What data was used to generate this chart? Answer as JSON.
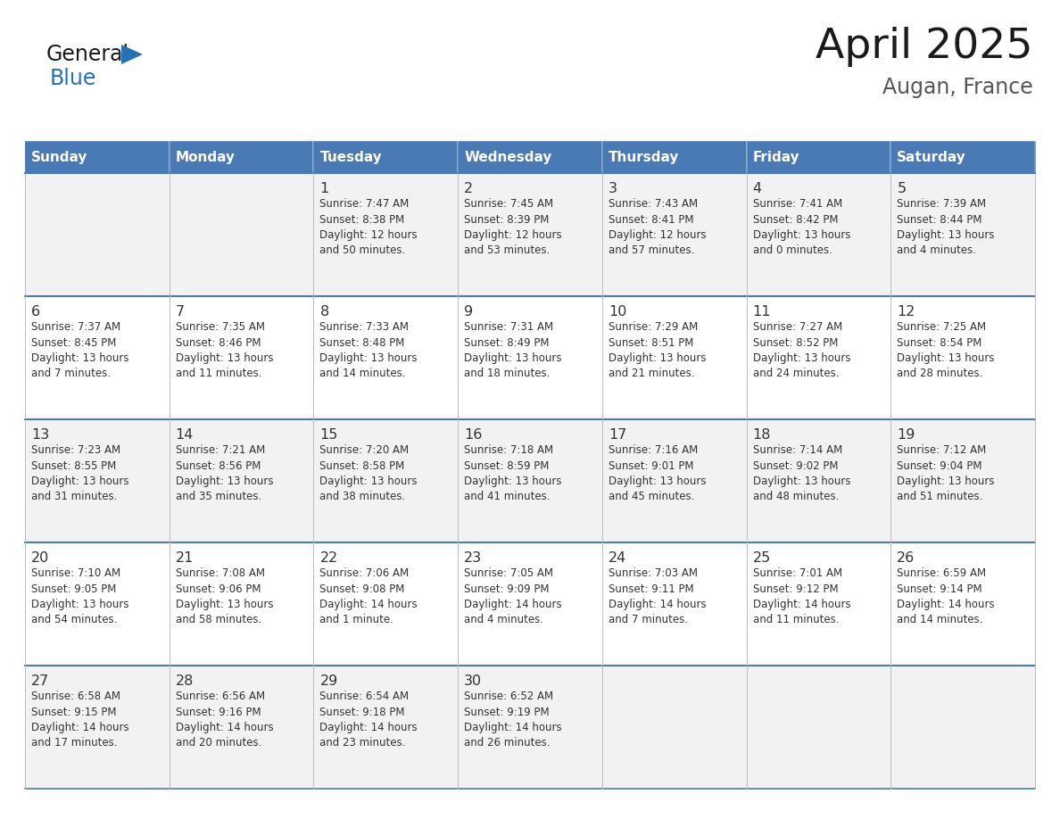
{
  "title": "April 2025",
  "subtitle": "Augan, France",
  "header_bg": "#4a7ab5",
  "header_text_color": "#ffffff",
  "cell_bg_light": "#f2f2f2",
  "cell_bg_white": "#ffffff",
  "text_color": "#333333",
  "border_color": "#4a7ab5",
  "grid_color": "#bbbbbb",
  "days_of_week": [
    "Sunday",
    "Monday",
    "Tuesday",
    "Wednesday",
    "Thursday",
    "Friday",
    "Saturday"
  ],
  "logo_general_color": "#1a1a1a",
  "logo_blue_color": "#2472b8",
  "logo_triangle_color": "#2472b8",
  "title_color": "#1a1a1a",
  "subtitle_color": "#555555",
  "calendar": [
    [
      {
        "day": "",
        "info": ""
      },
      {
        "day": "",
        "info": ""
      },
      {
        "day": "1",
        "info": "Sunrise: 7:47 AM\nSunset: 8:38 PM\nDaylight: 12 hours\nand 50 minutes."
      },
      {
        "day": "2",
        "info": "Sunrise: 7:45 AM\nSunset: 8:39 PM\nDaylight: 12 hours\nand 53 minutes."
      },
      {
        "day": "3",
        "info": "Sunrise: 7:43 AM\nSunset: 8:41 PM\nDaylight: 12 hours\nand 57 minutes."
      },
      {
        "day": "4",
        "info": "Sunrise: 7:41 AM\nSunset: 8:42 PM\nDaylight: 13 hours\nand 0 minutes."
      },
      {
        "day": "5",
        "info": "Sunrise: 7:39 AM\nSunset: 8:44 PM\nDaylight: 13 hours\nand 4 minutes."
      }
    ],
    [
      {
        "day": "6",
        "info": "Sunrise: 7:37 AM\nSunset: 8:45 PM\nDaylight: 13 hours\nand 7 minutes."
      },
      {
        "day": "7",
        "info": "Sunrise: 7:35 AM\nSunset: 8:46 PM\nDaylight: 13 hours\nand 11 minutes."
      },
      {
        "day": "8",
        "info": "Sunrise: 7:33 AM\nSunset: 8:48 PM\nDaylight: 13 hours\nand 14 minutes."
      },
      {
        "day": "9",
        "info": "Sunrise: 7:31 AM\nSunset: 8:49 PM\nDaylight: 13 hours\nand 18 minutes."
      },
      {
        "day": "10",
        "info": "Sunrise: 7:29 AM\nSunset: 8:51 PM\nDaylight: 13 hours\nand 21 minutes."
      },
      {
        "day": "11",
        "info": "Sunrise: 7:27 AM\nSunset: 8:52 PM\nDaylight: 13 hours\nand 24 minutes."
      },
      {
        "day": "12",
        "info": "Sunrise: 7:25 AM\nSunset: 8:54 PM\nDaylight: 13 hours\nand 28 minutes."
      }
    ],
    [
      {
        "day": "13",
        "info": "Sunrise: 7:23 AM\nSunset: 8:55 PM\nDaylight: 13 hours\nand 31 minutes."
      },
      {
        "day": "14",
        "info": "Sunrise: 7:21 AM\nSunset: 8:56 PM\nDaylight: 13 hours\nand 35 minutes."
      },
      {
        "day": "15",
        "info": "Sunrise: 7:20 AM\nSunset: 8:58 PM\nDaylight: 13 hours\nand 38 minutes."
      },
      {
        "day": "16",
        "info": "Sunrise: 7:18 AM\nSunset: 8:59 PM\nDaylight: 13 hours\nand 41 minutes."
      },
      {
        "day": "17",
        "info": "Sunrise: 7:16 AM\nSunset: 9:01 PM\nDaylight: 13 hours\nand 45 minutes."
      },
      {
        "day": "18",
        "info": "Sunrise: 7:14 AM\nSunset: 9:02 PM\nDaylight: 13 hours\nand 48 minutes."
      },
      {
        "day": "19",
        "info": "Sunrise: 7:12 AM\nSunset: 9:04 PM\nDaylight: 13 hours\nand 51 minutes."
      }
    ],
    [
      {
        "day": "20",
        "info": "Sunrise: 7:10 AM\nSunset: 9:05 PM\nDaylight: 13 hours\nand 54 minutes."
      },
      {
        "day": "21",
        "info": "Sunrise: 7:08 AM\nSunset: 9:06 PM\nDaylight: 13 hours\nand 58 minutes."
      },
      {
        "day": "22",
        "info": "Sunrise: 7:06 AM\nSunset: 9:08 PM\nDaylight: 14 hours\nand 1 minute."
      },
      {
        "day": "23",
        "info": "Sunrise: 7:05 AM\nSunset: 9:09 PM\nDaylight: 14 hours\nand 4 minutes."
      },
      {
        "day": "24",
        "info": "Sunrise: 7:03 AM\nSunset: 9:11 PM\nDaylight: 14 hours\nand 7 minutes."
      },
      {
        "day": "25",
        "info": "Sunrise: 7:01 AM\nSunset: 9:12 PM\nDaylight: 14 hours\nand 11 minutes."
      },
      {
        "day": "26",
        "info": "Sunrise: 6:59 AM\nSunset: 9:14 PM\nDaylight: 14 hours\nand 14 minutes."
      }
    ],
    [
      {
        "day": "27",
        "info": "Sunrise: 6:58 AM\nSunset: 9:15 PM\nDaylight: 14 hours\nand 17 minutes."
      },
      {
        "day": "28",
        "info": "Sunrise: 6:56 AM\nSunset: 9:16 PM\nDaylight: 14 hours\nand 20 minutes."
      },
      {
        "day": "29",
        "info": "Sunrise: 6:54 AM\nSunset: 9:18 PM\nDaylight: 14 hours\nand 23 minutes."
      },
      {
        "day": "30",
        "info": "Sunrise: 6:52 AM\nSunset: 9:19 PM\nDaylight: 14 hours\nand 26 minutes."
      },
      {
        "day": "",
        "info": ""
      },
      {
        "day": "",
        "info": ""
      },
      {
        "day": "",
        "info": ""
      }
    ]
  ]
}
